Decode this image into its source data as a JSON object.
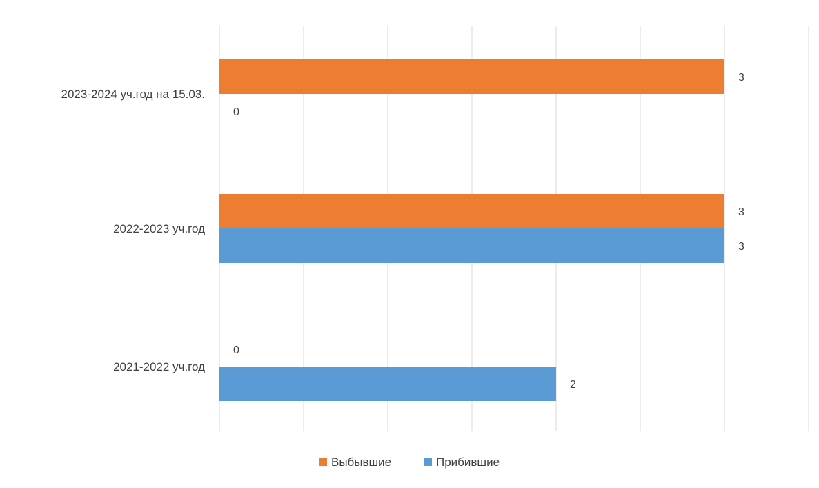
{
  "chart_data": {
    "type": "bar",
    "orientation": "horizontal",
    "categories": [
      "2021-2022 уч.год",
      "2022-2023 уч.год",
      "2023-2024 уч.год на 15.03."
    ],
    "series": [
      {
        "name": "Прибившие",
        "color": "#5b9bd5",
        "values": [
          2,
          3,
          0
        ]
      },
      {
        "name": "Выбывшие",
        "color": "#ed7d31",
        "values": [
          0,
          3,
          3
        ]
      }
    ],
    "data_labels": true,
    "xlim": [
      0,
      3.5
    ],
    "grid": true,
    "legend_position": "bottom",
    "legend": [
      {
        "name": "Выбывшие",
        "color": "#ed7d31"
      },
      {
        "name": "Прибившие",
        "color": "#5b9bd5"
      }
    ]
  }
}
